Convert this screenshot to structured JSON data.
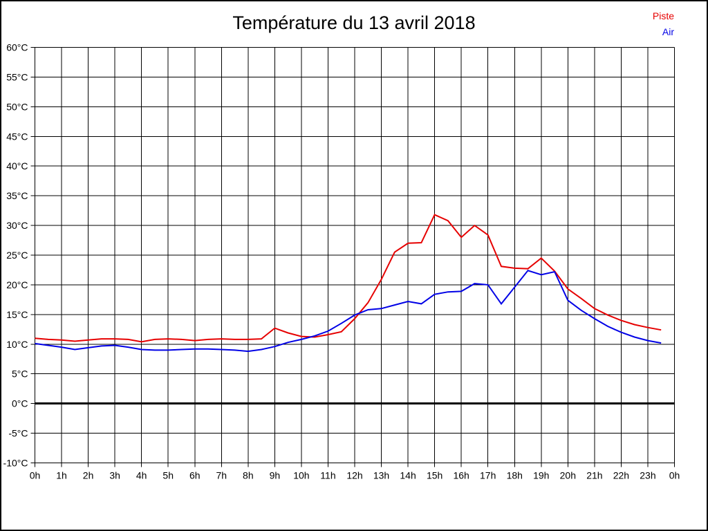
{
  "title": "Température du 13 avril 2018",
  "legend": [
    {
      "label": "Piste",
      "color": "#e60000"
    },
    {
      "label": "Air",
      "color": "#0000e6"
    }
  ],
  "chart_data": {
    "type": "line",
    "title": "Température du 13 avril 2018",
    "xlabel": "",
    "ylabel": "",
    "x_unit": "hours",
    "xlim": [
      0,
      24
    ],
    "ylim": [
      -10,
      60
    ],
    "grid": true,
    "zero_line": true,
    "legend_position": "top-right",
    "x": [
      0,
      0.5,
      1,
      1.5,
      2,
      2.5,
      3,
      3.5,
      4,
      4.5,
      5,
      5.5,
      6,
      6.5,
      7,
      7.5,
      8,
      8.5,
      9,
      9.5,
      10,
      10.5,
      11,
      11.5,
      12,
      12.5,
      13,
      13.5,
      14,
      14.5,
      15,
      15.5,
      16,
      16.5,
      17,
      17.5,
      18,
      18.5,
      19,
      19.5,
      20,
      20.5,
      21,
      21.5,
      22,
      22.5,
      23,
      23.5
    ],
    "series": [
      {
        "name": "Piste",
        "color": "#e60000",
        "values": [
          11.0,
          10.8,
          10.7,
          10.5,
          10.7,
          10.9,
          10.9,
          10.8,
          10.4,
          10.8,
          10.9,
          10.8,
          10.6,
          10.8,
          10.9,
          10.8,
          10.8,
          10.9,
          12.7,
          11.9,
          11.3,
          11.2,
          11.6,
          12.1,
          14.3,
          17.0,
          20.9,
          25.5,
          27.0,
          27.1,
          31.8,
          30.8,
          28.0,
          30.0,
          28.4,
          23.1,
          22.8,
          22.7,
          24.5,
          22.3,
          19.3,
          17.7,
          16.0,
          14.9,
          14.0,
          13.3,
          12.8,
          12.4
        ]
      },
      {
        "name": "Air",
        "color": "#0000e6",
        "values": [
          10.1,
          9.8,
          9.5,
          9.1,
          9.4,
          9.7,
          9.8,
          9.5,
          9.1,
          9.0,
          9.0,
          9.1,
          9.2,
          9.2,
          9.1,
          9.0,
          8.8,
          9.1,
          9.6,
          10.3,
          10.8,
          11.4,
          12.2,
          13.5,
          14.9,
          15.8,
          16.0,
          16.6,
          17.2,
          16.8,
          18.4,
          18.8,
          18.9,
          20.2,
          20.0,
          16.8,
          19.6,
          22.4,
          21.7,
          22.2,
          17.4,
          15.7,
          14.3,
          13.0,
          12.0,
          11.2,
          10.6,
          10.2
        ]
      }
    ],
    "x_tick_hours": [
      0,
      1,
      2,
      3,
      4,
      5,
      6,
      7,
      8,
      9,
      10,
      11,
      12,
      13,
      14,
      15,
      16,
      17,
      18,
      19,
      20,
      21,
      22,
      23,
      24
    ],
    "x_tick_labels": [
      "0h",
      "1h",
      "2h",
      "3h",
      "4h",
      "5h",
      "6h",
      "7h",
      "8h",
      "9h",
      "10h",
      "11h",
      "12h",
      "13h",
      "14h",
      "15h",
      "16h",
      "17h",
      "18h",
      "19h",
      "20h",
      "21h",
      "22h",
      "23h",
      "0h"
    ],
    "y_tick_values": [
      60,
      55,
      50,
      45,
      40,
      35,
      30,
      25,
      20,
      15,
      10,
      5,
      0,
      -5,
      -10
    ],
    "y_tick_labels": [
      "60°C",
      "55°C",
      "50°C",
      "45°C",
      "40°C",
      "35°C",
      "30°C",
      "25°C",
      "20°C",
      "15°C",
      "10°C",
      "5°C",
      "0°C",
      "-5°C",
      "-10°C"
    ]
  }
}
